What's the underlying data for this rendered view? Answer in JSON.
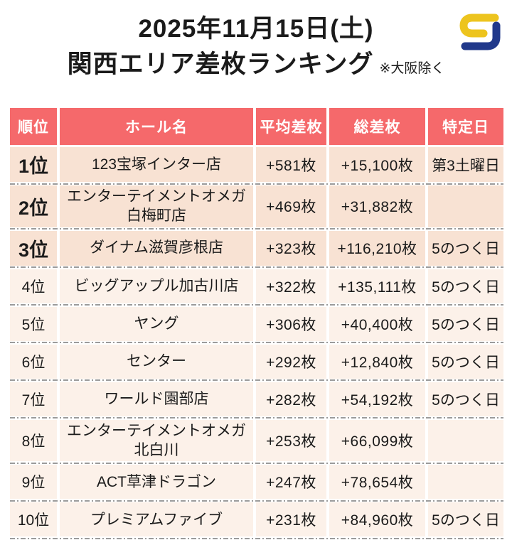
{
  "header": {
    "date": "2025年11月15日(土)",
    "title": "関西エリア差枚ランキング",
    "note": "※大阪除く"
  },
  "table": {
    "columns": [
      "順位",
      "ホール名",
      "平均差枚",
      "総差枚",
      "特定日"
    ],
    "rows": [
      {
        "rank": "1位",
        "hall": "123宝塚インター店",
        "avg": "+581枚",
        "total": "+15,100枚",
        "day": "第3土曜日",
        "top3": true
      },
      {
        "rank": "2位",
        "hall": "エンターテイメントオメガ白梅町店",
        "avg": "+469枚",
        "total": "+31,882枚",
        "day": "",
        "top3": true
      },
      {
        "rank": "3位",
        "hall": "ダイナム滋賀彦根店",
        "avg": "+323枚",
        "total": "+116,210枚",
        "day": "5のつく日",
        "top3": true
      },
      {
        "rank": "4位",
        "hall": "ビッグアップル加古川店",
        "avg": "+322枚",
        "total": "+135,111枚",
        "day": "5のつく日",
        "top3": false
      },
      {
        "rank": "5位",
        "hall": "ヤング",
        "avg": "+306枚",
        "total": "+40,400枚",
        "day": "5のつく日",
        "top3": false
      },
      {
        "rank": "6位",
        "hall": "センター",
        "avg": "+292枚",
        "total": "+12,840枚",
        "day": "5のつく日",
        "top3": false
      },
      {
        "rank": "7位",
        "hall": "ワールド園部店",
        "avg": "+282枚",
        "total": "+54,192枚",
        "day": "5のつく日",
        "top3": false
      },
      {
        "rank": "8位",
        "hall": "エンターテイメントオメガ北白川",
        "avg": "+253枚",
        "total": "+66,099枚",
        "day": "",
        "top3": false
      },
      {
        "rank": "9位",
        "hall": "ACT草津ドラゴン",
        "avg": "+247枚",
        "total": "+78,654枚",
        "day": "",
        "top3": false
      },
      {
        "rank": "10位",
        "hall": "プレミアムファイブ",
        "avg": "+231枚",
        "total": "+84,960枚",
        "day": "5のつく日",
        "top3": false
      }
    ]
  },
  "colors": {
    "header_bg": "#f5696b",
    "row_top3_bg": "#f8e2d3",
    "row_bg": "#fcf1e9",
    "divider": "#9b9b9b",
    "logo_yellow": "#edc41e",
    "logo_navy": "#21398b"
  }
}
